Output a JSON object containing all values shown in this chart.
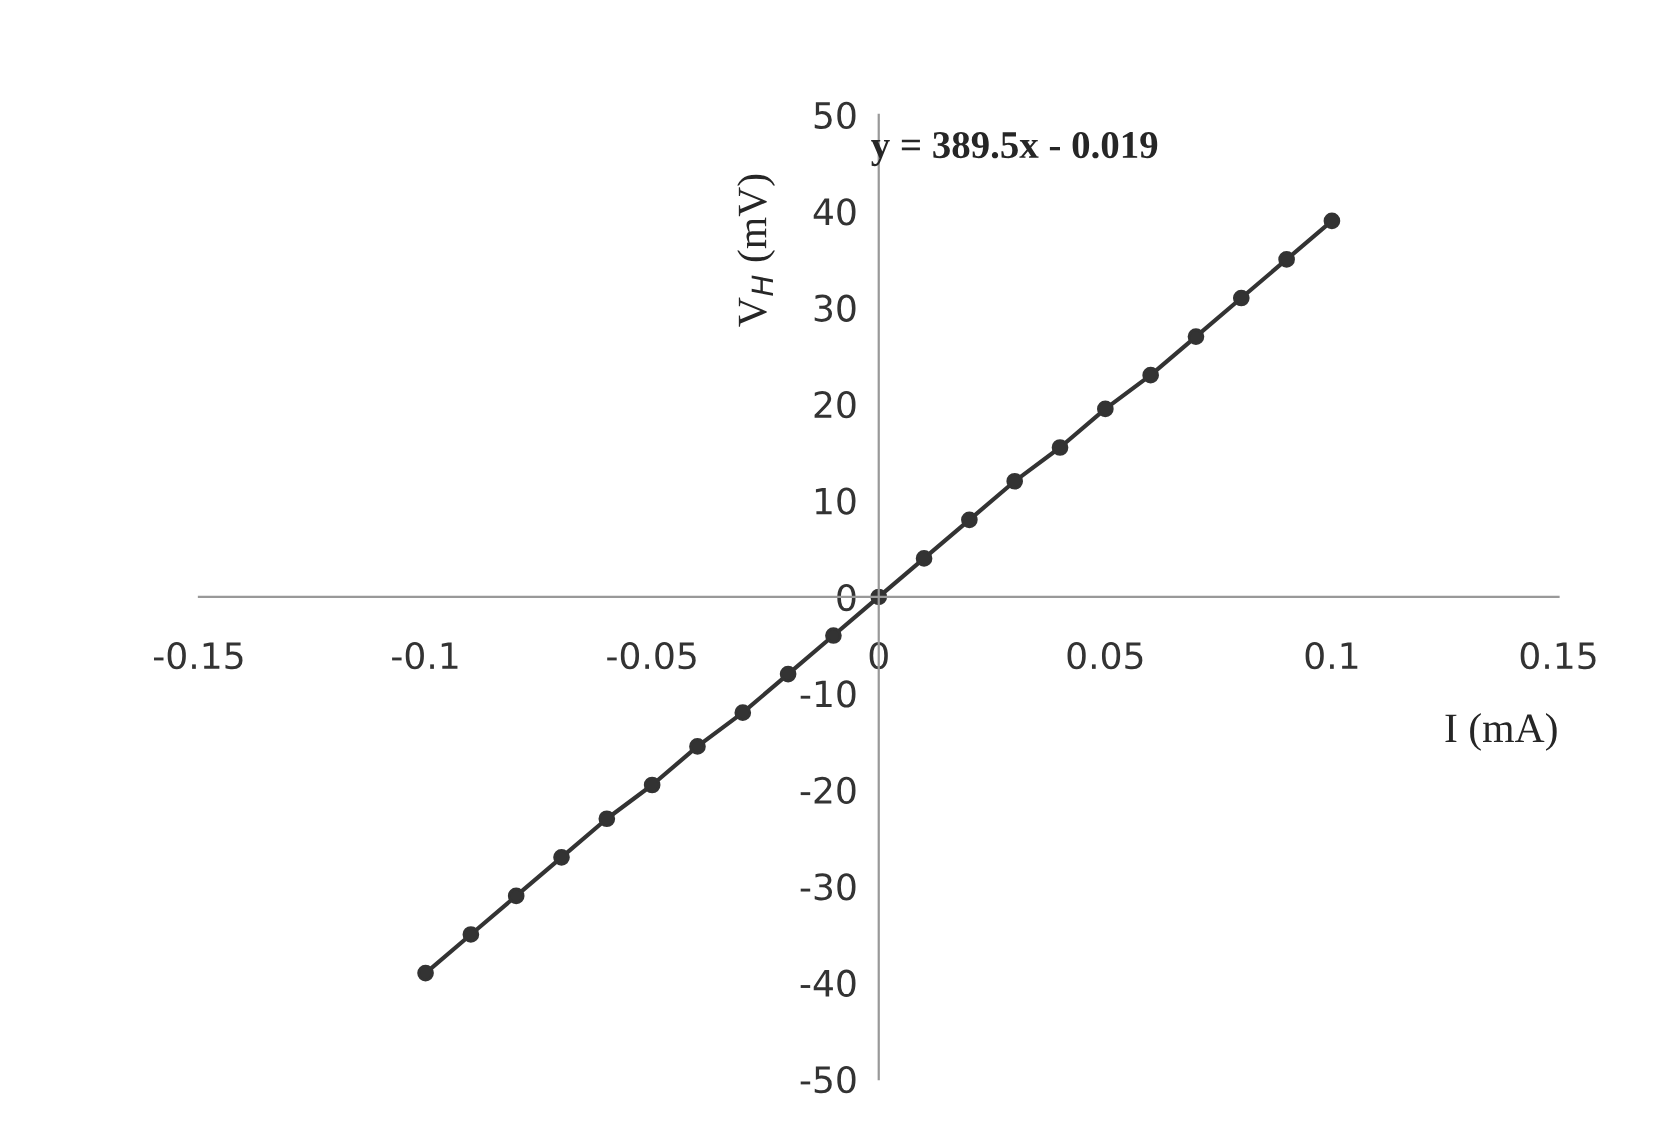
{
  "chart_data": {
    "type": "line",
    "xlabel": "I (mA)",
    "ylabel": "V$_{H}$ (mV)",
    "annotations": [
      "y = 389.5x - 0.019"
    ],
    "x": [
      -0.1,
      -0.09,
      -0.08,
      -0.07,
      -0.06,
      -0.05,
      -0.04,
      -0.03,
      -0.02,
      -0.01,
      0,
      0.01,
      0.02,
      0.03,
      0.04,
      0.05,
      0.06,
      0.07,
      0.08,
      0.09,
      0.1
    ],
    "series": [
      {
        "color": "#333333",
        "values": [
          -39,
          -35,
          -31,
          -27,
          -23,
          -19.5,
          -15.5,
          -12,
          -8,
          -4,
          0,
          4,
          8,
          12,
          15.5,
          19.5,
          23,
          27,
          31,
          35,
          39
        ]
      }
    ],
    "xlim": [
      -0.15,
      0.15
    ],
    "xticks": [
      -0.15,
      -0.1,
      -0.05,
      0,
      0.05,
      0.1,
      0.15
    ],
    "ylim": [
      -50,
      50
    ],
    "yticks": [
      -50,
      -40,
      -30,
      -20,
      -10,
      0,
      10,
      20,
      30,
      40,
      50
    ],
    "grid": false,
    "marker": "circle",
    "line_style": "solid"
  }
}
